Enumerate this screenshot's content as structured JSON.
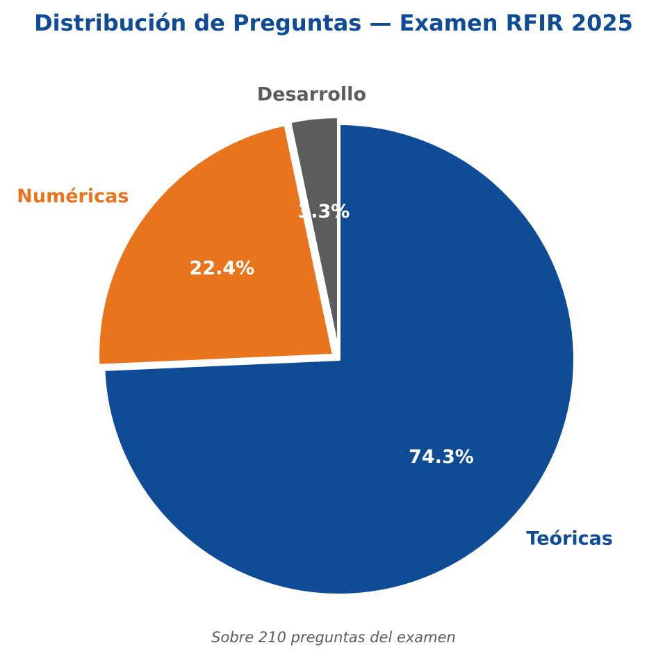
{
  "chart_data": {
    "type": "pie",
    "title": "Distribución de Preguntas — Examen RFIR 2025",
    "caption": "Sobre 210 preguntas del examen",
    "slices": [
      {
        "label": "Teóricas",
        "percent_label": "74.3%",
        "value": 74.3,
        "color": "#104b96",
        "exploded": false
      },
      {
        "label": "Numéricas",
        "percent_label": "22.4%",
        "value": 22.4,
        "color": "#e8741e",
        "exploded": true
      },
      {
        "label": "Desarrollo",
        "percent_label": "3.3%",
        "value": 3.3,
        "color": "#5c5c5c",
        "exploded": true
      }
    ],
    "start_angle": "12 o'clock",
    "direction": "clockwise"
  },
  "colors": {
    "title": "#104b96",
    "caption": "#5c5c5c",
    "slice_edge": "#ffffff"
  }
}
